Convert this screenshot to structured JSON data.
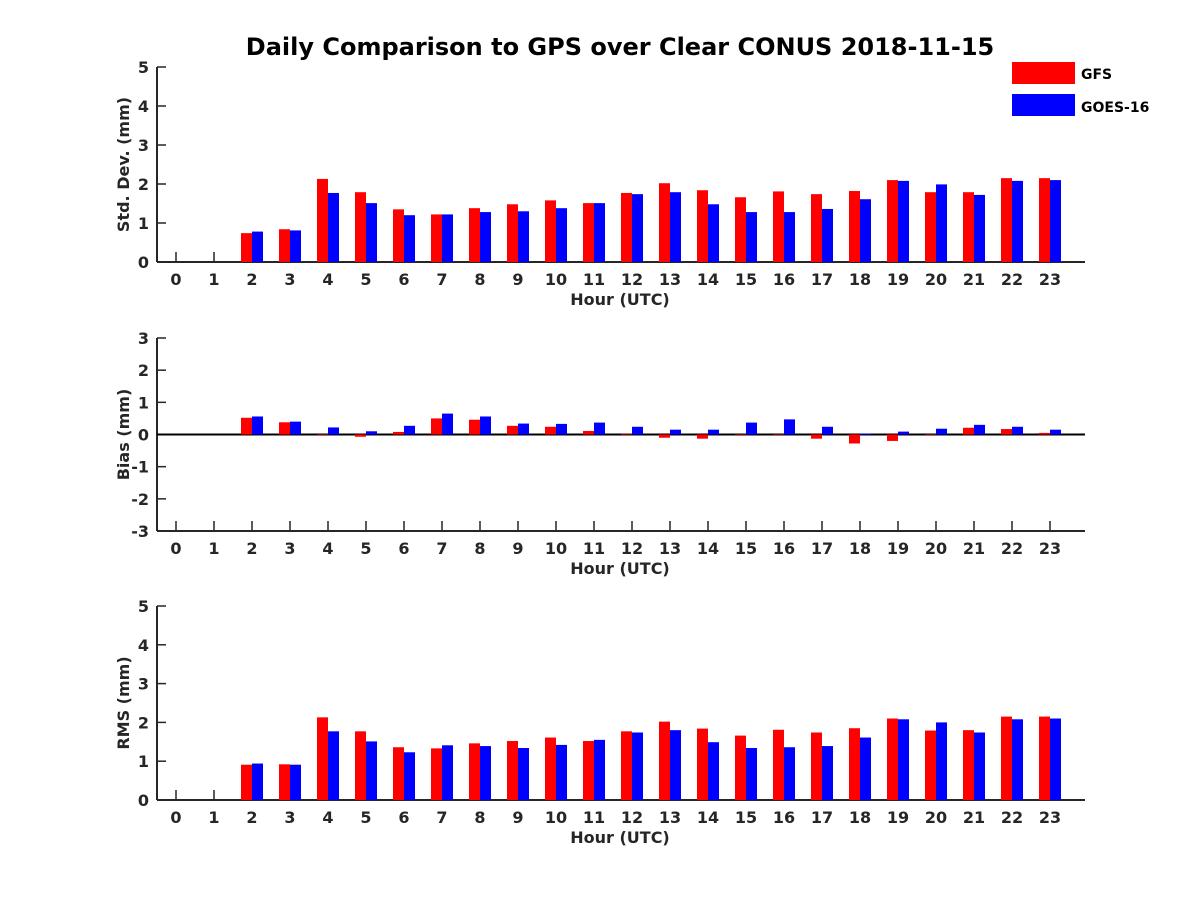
{
  "chart_data": {
    "title": "Daily Comparison to GPS over Clear CONUS 2018-11-15",
    "legend": {
      "placement": "top-right",
      "entries": [
        {
          "name": "GFS",
          "color": "#ff0000"
        },
        {
          "name": "GOES-16",
          "color": "#0000ff"
        }
      ]
    },
    "panels": [
      {
        "type": "bar",
        "ylabel": "Std. Dev. (mm)",
        "xlabel": "Hour (UTC)",
        "ylim": [
          0,
          5
        ],
        "yticks": [
          0,
          1,
          2,
          3,
          4,
          5
        ],
        "categories": [
          "0",
          "1",
          "2",
          "3",
          "4",
          "5",
          "6",
          "7",
          "8",
          "9",
          "10",
          "11",
          "12",
          "13",
          "14",
          "15",
          "16",
          "17",
          "18",
          "19",
          "20",
          "21",
          "22",
          "23"
        ],
        "series": [
          {
            "name": "GFS",
            "color": "#ff0000",
            "values": [
              null,
              null,
              0.74,
              0.84,
              2.13,
              1.79,
              1.35,
              1.22,
              1.38,
              1.48,
              1.58,
              1.51,
              1.77,
              2.02,
              1.84,
              1.66,
              1.81,
              1.74,
              1.82,
              2.1,
              1.79,
              1.79,
              2.15,
              2.15
            ]
          },
          {
            "name": "GOES-16",
            "color": "#0000ff",
            "values": [
              null,
              null,
              0.78,
              0.81,
              1.77,
              1.51,
              1.2,
              1.22,
              1.28,
              1.3,
              1.38,
              1.51,
              1.74,
              1.79,
              1.48,
              1.28,
              1.28,
              1.36,
              1.61,
              2.08,
              1.99,
              1.72,
              2.08,
              2.1
            ]
          }
        ]
      },
      {
        "type": "bar",
        "ylabel": "Bias (mm)",
        "xlabel": "Hour (UTC)",
        "ylim": [
          -3,
          3
        ],
        "yticks": [
          -3,
          -2,
          -1,
          0,
          1,
          2,
          3
        ],
        "categories": [
          "0",
          "1",
          "2",
          "3",
          "4",
          "5",
          "6",
          "7",
          "8",
          "9",
          "10",
          "11",
          "12",
          "13",
          "14",
          "15",
          "16",
          "17",
          "18",
          "19",
          "20",
          "21",
          "22",
          "23"
        ],
        "series": [
          {
            "name": "GFS",
            "color": "#ff0000",
            "values": [
              null,
              null,
              0.52,
              0.38,
              0.0,
              -0.07,
              0.08,
              0.5,
              0.46,
              0.27,
              0.24,
              0.11,
              0.02,
              -0.1,
              -0.13,
              0.0,
              0.0,
              -0.13,
              -0.28,
              -0.2,
              0.0,
              0.21,
              0.17,
              0.05
            ]
          },
          {
            "name": "GOES-16",
            "color": "#0000ff",
            "values": [
              null,
              null,
              0.56,
              0.4,
              0.22,
              0.1,
              0.27,
              0.65,
              0.56,
              0.34,
              0.33,
              0.37,
              0.24,
              0.15,
              0.15,
              0.37,
              0.47,
              0.24,
              0.03,
              0.09,
              0.18,
              0.3,
              0.24,
              0.15
            ]
          }
        ]
      },
      {
        "type": "bar",
        "ylabel": "RMS (mm)",
        "xlabel": "Hour (UTC)",
        "ylim": [
          0,
          5
        ],
        "yticks": [
          0,
          1,
          2,
          3,
          4,
          5
        ],
        "categories": [
          "0",
          "1",
          "2",
          "3",
          "4",
          "5",
          "6",
          "7",
          "8",
          "9",
          "10",
          "11",
          "12",
          "13",
          "14",
          "15",
          "16",
          "17",
          "18",
          "19",
          "20",
          "21",
          "22",
          "23"
        ],
        "series": [
          {
            "name": "GFS",
            "color": "#ff0000",
            "values": [
              null,
              null,
              0.91,
              0.92,
              2.13,
              1.77,
              1.36,
              1.33,
              1.46,
              1.52,
              1.61,
              1.52,
              1.77,
              2.02,
              1.84,
              1.66,
              1.81,
              1.74,
              1.85,
              2.1,
              1.79,
              1.8,
              2.15,
              2.15
            ]
          },
          {
            "name": "GOES-16",
            "color": "#0000ff",
            "values": [
              null,
              null,
              0.94,
              0.91,
              1.77,
              1.51,
              1.23,
              1.41,
              1.39,
              1.34,
              1.42,
              1.55,
              1.74,
              1.8,
              1.49,
              1.34,
              1.36,
              1.39,
              1.61,
              2.08,
              2.0,
              1.74,
              2.08,
              2.1
            ]
          }
        ]
      }
    ]
  }
}
